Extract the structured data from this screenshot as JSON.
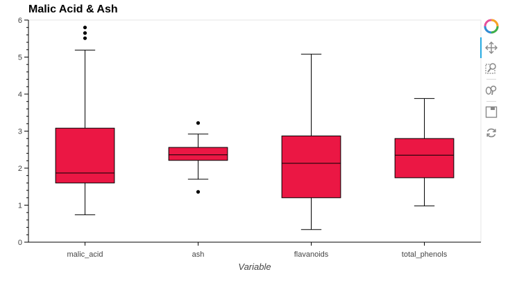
{
  "chart_data": {
    "type": "box",
    "title": "Malic Acid & Ash",
    "xlabel": "Variable",
    "ylabel": "",
    "ylim": [
      0,
      6
    ],
    "yticks": [
      0,
      1,
      2,
      3,
      4,
      5,
      6
    ],
    "grid": false,
    "box_color": "#eb1744",
    "categories": [
      "malic_acid",
      "ash",
      "flavanoids",
      "total_phenols"
    ],
    "boxes": [
      {
        "category": "malic_acid",
        "whisker_low": 0.74,
        "q1": 1.6,
        "median": 1.87,
        "q3": 3.08,
        "whisker_high": 5.19,
        "outliers": [
          5.51,
          5.65,
          5.8
        ]
      },
      {
        "category": "ash",
        "whisker_low": 1.7,
        "q1": 2.21,
        "median": 2.36,
        "q3": 2.56,
        "whisker_high": 2.92,
        "outliers": [
          3.22,
          1.36
        ]
      },
      {
        "category": "flavanoids",
        "whisker_low": 0.34,
        "q1": 1.2,
        "median": 2.13,
        "q3": 2.87,
        "whisker_high": 5.08,
        "outliers": []
      },
      {
        "category": "total_phenols",
        "whisker_low": 0.98,
        "q1": 1.74,
        "median": 2.35,
        "q3": 2.8,
        "whisker_high": 3.88,
        "outliers": []
      }
    ]
  },
  "toolbar": {
    "logo_icon": "bokeh-logo-icon",
    "tools": [
      "pan-icon",
      "box-zoom-icon",
      "wheel-zoom-icon",
      "save-icon",
      "reset-icon"
    ]
  }
}
